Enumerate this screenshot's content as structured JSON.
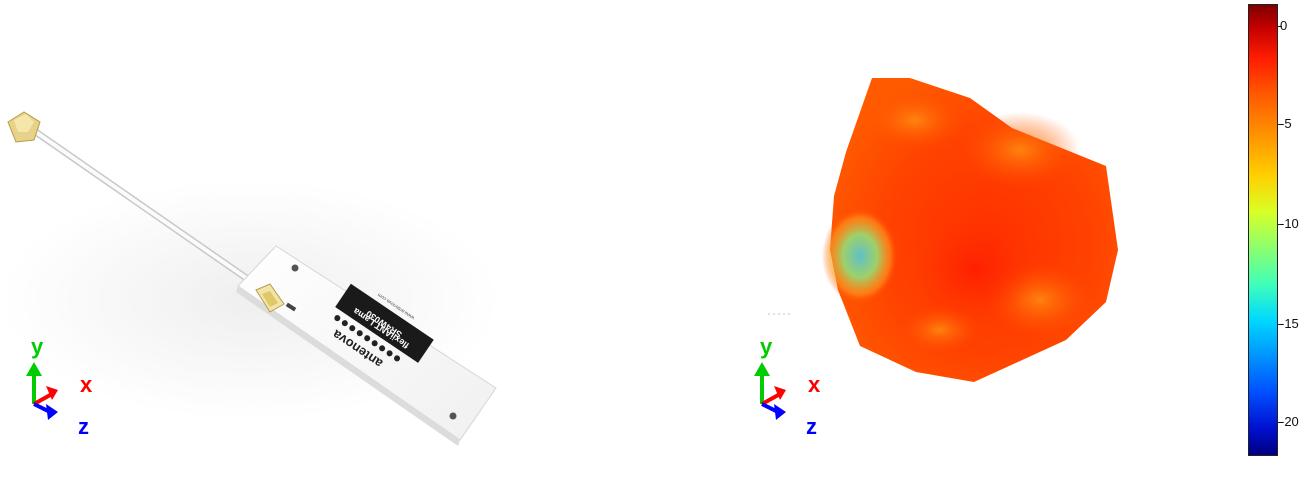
{
  "left_view": {
    "axes": {
      "x": "x",
      "y": "y",
      "z": "z"
    },
    "pcb_marking": {
      "brand": "antenova",
      "product": "flexiiANT Lama",
      "part": "SR4W030",
      "small": "www.antenova.com"
    }
  },
  "right_view": {
    "axes": {
      "x": "x",
      "y": "y",
      "z": "z"
    }
  },
  "colorbar": {
    "ticks": [
      "0",
      "-5",
      "-10",
      "-15",
      "-20"
    ]
  },
  "colors": {
    "axis_x": "#ff0000",
    "axis_y": "#00cc00",
    "axis_z": "#0000ff",
    "pattern_main": "#ff3a00"
  }
}
